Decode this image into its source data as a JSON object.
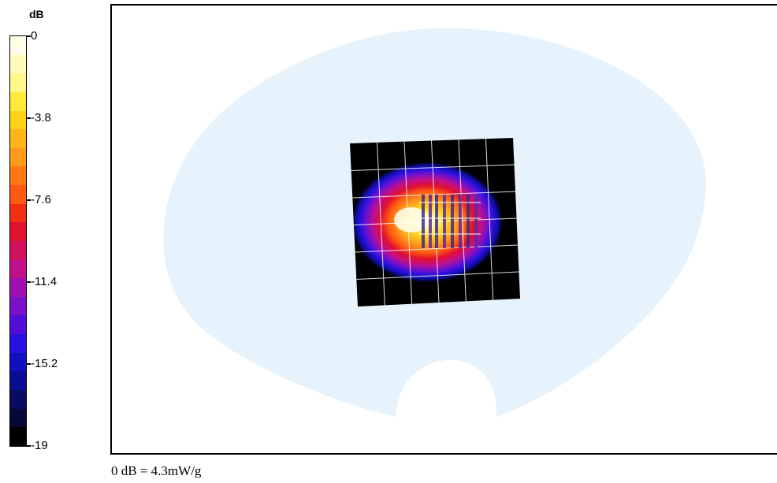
{
  "chart_data": {
    "type": "heatmap",
    "title": "",
    "colorbar": {
      "unit": "dB",
      "tick_labels": [
        "0",
        "-3.8",
        "-7.6",
        "-11.4",
        "-15.2",
        "-19"
      ],
      "ticks": [
        0,
        -3.8,
        -7.6,
        -11.4,
        -15.2,
        -19
      ],
      "range": [
        -19,
        0
      ],
      "colors": [
        "#fffde8",
        "#fffbb8",
        "#fff78a",
        "#ffea3a",
        "#ffd21a",
        "#ffb51a",
        "#ff9a1a",
        "#ff7a14",
        "#ff5a12",
        "#f03012",
        "#e01030",
        "#d0105a",
        "#c0108a",
        "#a010b0",
        "#7a10c8",
        "#5010d8",
        "#2a10e0",
        "#1010c0",
        "#0c0c90",
        "#0a0a60",
        "#080838",
        "#000000"
      ]
    },
    "phantom_color": "#e6f2fc",
    "peak_value_db": 0,
    "grid": true
  },
  "footnote": "0 dB = 4.3mW/g"
}
